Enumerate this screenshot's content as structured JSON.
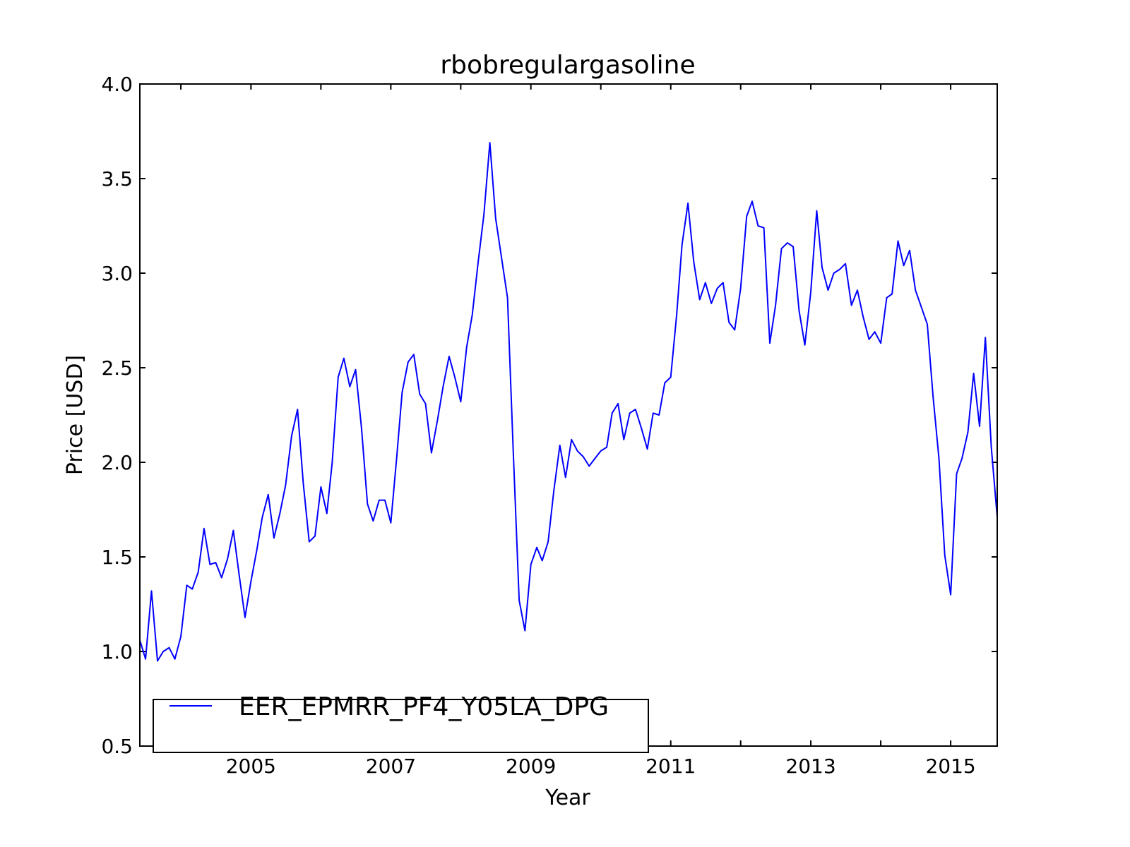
{
  "chart_data": {
    "type": "line",
    "title": "rbobregulargasoline",
    "xlabel": "Year",
    "ylabel": "Price [USD]",
    "xlim": [
      "2003-06-01",
      "2015-09-01"
    ],
    "ylim": [
      0.5,
      4.0
    ],
    "x_ticks": [
      "2005",
      "2007",
      "2009",
      "2011",
      "2013",
      "2015"
    ],
    "y_ticks": [
      "0.5",
      "1.0",
      "1.5",
      "2.0",
      "2.5",
      "3.0",
      "3.5",
      "4.0"
    ],
    "grid": false,
    "legend_position": "lower-left",
    "series": [
      {
        "name": "EER_EPMRR_PF4_Y05LA_DPG",
        "color": "#0000ff",
        "x": [
          "2003-06-01",
          "2003-07-01",
          "2003-08-01",
          "2003-09-01",
          "2003-10-01",
          "2003-11-01",
          "2003-12-01",
          "2004-01-01",
          "2004-02-01",
          "2004-03-01",
          "2004-04-01",
          "2004-05-01",
          "2004-06-01",
          "2004-07-01",
          "2004-08-01",
          "2004-09-01",
          "2004-10-01",
          "2004-11-01",
          "2004-12-01",
          "2005-01-01",
          "2005-02-01",
          "2005-03-01",
          "2005-04-01",
          "2005-05-01",
          "2005-06-01",
          "2005-07-01",
          "2005-08-01",
          "2005-09-01",
          "2005-10-01",
          "2005-11-01",
          "2005-12-01",
          "2006-01-01",
          "2006-02-01",
          "2006-03-01",
          "2006-04-01",
          "2006-05-01",
          "2006-06-01",
          "2006-07-01",
          "2006-08-01",
          "2006-09-01",
          "2006-10-01",
          "2006-11-01",
          "2006-12-01",
          "2007-01-01",
          "2007-02-01",
          "2007-03-01",
          "2007-04-01",
          "2007-05-01",
          "2007-06-01",
          "2007-07-01",
          "2007-08-01",
          "2007-09-01",
          "2007-10-01",
          "2007-11-01",
          "2007-12-01",
          "2008-01-01",
          "2008-02-01",
          "2008-03-01",
          "2008-04-01",
          "2008-05-01",
          "2008-06-01",
          "2008-07-01",
          "2008-08-01",
          "2008-09-01",
          "2008-10-01",
          "2008-11-01",
          "2008-12-01",
          "2009-01-01",
          "2009-02-01",
          "2009-03-01",
          "2009-04-01",
          "2009-05-01",
          "2009-06-01",
          "2009-07-01",
          "2009-08-01",
          "2009-09-01",
          "2009-10-01",
          "2009-11-01",
          "2009-12-01",
          "2010-01-01",
          "2010-02-01",
          "2010-03-01",
          "2010-04-01",
          "2010-05-01",
          "2010-06-01",
          "2010-07-01",
          "2010-08-01",
          "2010-09-01",
          "2010-10-01",
          "2010-11-01",
          "2010-12-01",
          "2011-01-01",
          "2011-02-01",
          "2011-03-01",
          "2011-04-01",
          "2011-05-01",
          "2011-06-01",
          "2011-07-01",
          "2011-08-01",
          "2011-09-01",
          "2011-10-01",
          "2011-11-01",
          "2011-12-01",
          "2012-01-01",
          "2012-02-01",
          "2012-03-01",
          "2012-04-01",
          "2012-05-01",
          "2012-06-01",
          "2012-07-01",
          "2012-08-01",
          "2012-09-01",
          "2012-10-01",
          "2012-11-01",
          "2012-12-01",
          "2013-01-01",
          "2013-02-01",
          "2013-03-01",
          "2013-04-01",
          "2013-05-01",
          "2013-06-01",
          "2013-07-01",
          "2013-08-01",
          "2013-09-01",
          "2013-10-01",
          "2013-11-01",
          "2013-12-01",
          "2014-01-01",
          "2014-02-01",
          "2014-03-01",
          "2014-04-01",
          "2014-05-01",
          "2014-06-01",
          "2014-07-01",
          "2014-08-01",
          "2014-09-01",
          "2014-10-01",
          "2014-11-01",
          "2014-12-01",
          "2015-01-01",
          "2015-02-01",
          "2015-03-01",
          "2015-04-01",
          "2015-05-01",
          "2015-06-01",
          "2015-07-01",
          "2015-08-01",
          "2015-09-01"
        ],
        "y": [
          1.06,
          0.96,
          1.32,
          0.95,
          1.0,
          1.02,
          0.96,
          1.08,
          1.35,
          1.33,
          1.42,
          1.65,
          1.46,
          1.47,
          1.39,
          1.49,
          1.64,
          1.4,
          1.18,
          1.37,
          1.54,
          1.71,
          1.83,
          1.6,
          1.73,
          1.88,
          2.14,
          2.28,
          1.89,
          1.58,
          1.61,
          1.87,
          1.73,
          2.0,
          2.45,
          2.55,
          2.4,
          2.49,
          2.18,
          1.78,
          1.69,
          1.8,
          1.8,
          1.68,
          2.03,
          2.37,
          2.53,
          2.57,
          2.36,
          2.31,
          2.05,
          2.22,
          2.4,
          2.56,
          2.45,
          2.32,
          2.61,
          2.78,
          3.06,
          3.31,
          3.69,
          3.29,
          3.08,
          2.87,
          2.06,
          1.27,
          1.11,
          1.46,
          1.55,
          1.48,
          1.58,
          1.85,
          2.09,
          1.92,
          2.12,
          2.06,
          2.03,
          1.98,
          2.02,
          2.06,
          2.08,
          2.26,
          2.31,
          2.12,
          2.26,
          2.28,
          2.18,
          2.07,
          2.26,
          2.25,
          2.42,
          2.45,
          2.78,
          3.15,
          3.37,
          3.06,
          2.86,
          2.95,
          2.84,
          2.92,
          2.95,
          2.74,
          2.7,
          2.92,
          3.3,
          3.38,
          3.25,
          3.24,
          2.63,
          2.83,
          3.13,
          3.16,
          3.14,
          2.8,
          2.62,
          2.9,
          3.33,
          3.03,
          2.91,
          3.0,
          3.02,
          3.05,
          2.83,
          2.91,
          2.77,
          2.65,
          2.69,
          2.63,
          2.87,
          2.89,
          3.17,
          3.04,
          3.12,
          2.91,
          2.82,
          2.73,
          2.35,
          2.02,
          1.51,
          1.3,
          1.94,
          2.02,
          2.16,
          2.47,
          2.19,
          2.66,
          2.08,
          1.71
        ]
      }
    ]
  }
}
